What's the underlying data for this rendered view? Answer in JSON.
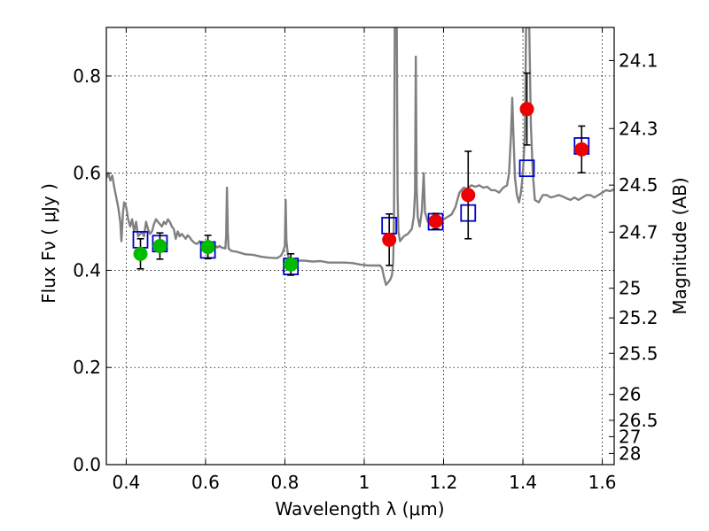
{
  "chart_data": {
    "type": "scatter",
    "xlabel": "Wavelength  λ (μm)",
    "ylabel": "Flux  Fν  ( μJy )",
    "y2label": "Magnitude (AB)",
    "xlim": [
      0.35,
      1.63
    ],
    "ylim": [
      0.0,
      0.9
    ],
    "grid": true,
    "x_ticks": [
      {
        "value": 0.4,
        "label": "0.4"
      },
      {
        "value": 0.6,
        "label": "0.6"
      },
      {
        "value": 0.8,
        "label": "0.8"
      },
      {
        "value": 1.0,
        "label": "1"
      },
      {
        "value": 1.2,
        "label": "1.2"
      },
      {
        "value": 1.4,
        "label": "1.4"
      },
      {
        "value": 1.6,
        "label": "1.6"
      }
    ],
    "y_ticks": [
      {
        "value": 0.0,
        "label": "0.0"
      },
      {
        "value": 0.2,
        "label": "0.2"
      },
      {
        "value": 0.4,
        "label": "0.4"
      },
      {
        "value": 0.6,
        "label": "0.6"
      },
      {
        "value": 0.8,
        "label": "0.8"
      }
    ],
    "y2_ticks": [
      {
        "value": 24.1,
        "label": "24.1"
      },
      {
        "value": 24.3,
        "label": "24.3"
      },
      {
        "value": 24.5,
        "label": "24.5"
      },
      {
        "value": 24.7,
        "label": "24.7"
      },
      {
        "value": 25.0,
        "label": "25"
      },
      {
        "value": 25.2,
        "label": "25.2"
      },
      {
        "value": 25.5,
        "label": "25.5"
      },
      {
        "value": 26.0,
        "label": "26"
      },
      {
        "value": 26.5,
        "label": "26.5"
      },
      {
        "value": 27.0,
        "label": "27"
      },
      {
        "value": 28.0,
        "label": "28"
      }
    ],
    "colors": {
      "model": "#808080",
      "model_photometry": "#0000cc",
      "optical_points": "#00bb00",
      "nir_points": "#ee0000",
      "errorbar": "#000000"
    },
    "model_spectrum": [
      [
        0.35,
        0.59
      ],
      [
        0.355,
        0.6
      ],
      [
        0.36,
        0.585
      ],
      [
        0.365,
        0.595
      ],
      [
        0.37,
        0.57
      ],
      [
        0.375,
        0.55
      ],
      [
        0.38,
        0.53
      ],
      [
        0.385,
        0.5
      ],
      [
        0.388,
        0.46
      ],
      [
        0.392,
        0.52
      ],
      [
        0.395,
        0.54
      ],
      [
        0.4,
        0.53
      ],
      [
        0.405,
        0.505
      ],
      [
        0.41,
        0.49
      ],
      [
        0.415,
        0.505
      ],
      [
        0.42,
        0.48
      ],
      [
        0.425,
        0.5
      ],
      [
        0.43,
        0.47
      ],
      [
        0.435,
        0.475
      ],
      [
        0.44,
        0.478
      ],
      [
        0.445,
        0.47
      ],
      [
        0.45,
        0.5
      ],
      [
        0.455,
        0.485
      ],
      [
        0.46,
        0.475
      ],
      [
        0.465,
        0.48
      ],
      [
        0.47,
        0.495
      ],
      [
        0.475,
        0.505
      ],
      [
        0.48,
        0.5
      ],
      [
        0.485,
        0.495
      ],
      [
        0.49,
        0.49
      ],
      [
        0.495,
        0.5
      ],
      [
        0.5,
        0.495
      ],
      [
        0.505,
        0.505
      ],
      [
        0.51,
        0.5
      ],
      [
        0.515,
        0.49
      ],
      [
        0.52,
        0.485
      ],
      [
        0.525,
        0.465
      ],
      [
        0.53,
        0.48
      ],
      [
        0.535,
        0.47
      ],
      [
        0.54,
        0.475
      ],
      [
        0.545,
        0.47
      ],
      [
        0.55,
        0.465
      ],
      [
        0.555,
        0.472
      ],
      [
        0.56,
        0.468
      ],
      [
        0.565,
        0.462
      ],
      [
        0.57,
        0.458
      ],
      [
        0.575,
        0.455
      ],
      [
        0.58,
        0.455
      ],
      [
        0.585,
        0.46
      ],
      [
        0.59,
        0.455
      ],
      [
        0.595,
        0.458
      ],
      [
        0.6,
        0.455
      ],
      [
        0.605,
        0.452
      ],
      [
        0.61,
        0.455
      ],
      [
        0.615,
        0.452
      ],
      [
        0.62,
        0.448
      ],
      [
        0.625,
        0.45
      ],
      [
        0.63,
        0.447
      ],
      [
        0.635,
        0.45
      ],
      [
        0.64,
        0.447
      ],
      [
        0.645,
        0.446
      ],
      [
        0.65,
        0.445
      ],
      [
        0.652,
        0.47
      ],
      [
        0.654,
        0.57
      ],
      [
        0.656,
        0.48
      ],
      [
        0.658,
        0.445
      ],
      [
        0.665,
        0.44
      ],
      [
        0.68,
        0.438
      ],
      [
        0.7,
        0.433
      ],
      [
        0.72,
        0.432
      ],
      [
        0.74,
        0.428
      ],
      [
        0.76,
        0.426
      ],
      [
        0.78,
        0.425
      ],
      [
        0.79,
        0.43
      ],
      [
        0.795,
        0.438
      ],
      [
        0.8,
        0.45
      ],
      [
        0.802,
        0.545
      ],
      [
        0.804,
        0.46
      ],
      [
        0.808,
        0.43
      ],
      [
        0.815,
        0.42
      ],
      [
        0.83,
        0.42
      ],
      [
        0.85,
        0.42
      ],
      [
        0.87,
        0.418
      ],
      [
        0.89,
        0.419
      ],
      [
        0.91,
        0.416
      ],
      [
        0.93,
        0.416
      ],
      [
        0.95,
        0.416
      ],
      [
        0.97,
        0.415
      ],
      [
        0.99,
        0.412
      ],
      [
        1.01,
        0.41
      ],
      [
        1.03,
        0.41
      ],
      [
        1.04,
        0.41
      ],
      [
        1.045,
        0.405
      ],
      [
        1.05,
        0.385
      ],
      [
        1.055,
        0.37
      ],
      [
        1.06,
        0.375
      ],
      [
        1.065,
        0.38
      ],
      [
        1.07,
        0.39
      ],
      [
        1.073,
        0.42
      ],
      [
        1.075,
        0.52
      ],
      [
        1.077,
        0.9
      ],
      [
        1.082,
        0.9
      ],
      [
        1.084,
        0.56
      ],
      [
        1.086,
        0.48
      ],
      [
        1.09,
        0.46
      ],
      [
        1.1,
        0.47
      ],
      [
        1.11,
        0.475
      ],
      [
        1.12,
        0.485
      ],
      [
        1.125,
        0.51
      ],
      [
        1.128,
        0.56
      ],
      [
        1.13,
        0.84
      ],
      [
        1.132,
        0.57
      ],
      [
        1.135,
        0.51
      ],
      [
        1.14,
        0.49
      ],
      [
        1.145,
        0.52
      ],
      [
        1.15,
        0.6
      ],
      [
        1.153,
        0.52
      ],
      [
        1.16,
        0.5
      ],
      [
        1.17,
        0.505
      ],
      [
        1.18,
        0.502
      ],
      [
        1.19,
        0.505
      ],
      [
        1.2,
        0.505
      ],
      [
        1.21,
        0.51
      ],
      [
        1.22,
        0.515
      ],
      [
        1.23,
        0.53
      ],
      [
        1.24,
        0.56
      ],
      [
        1.25,
        0.57
      ],
      [
        1.26,
        0.568
      ],
      [
        1.27,
        0.575
      ],
      [
        1.28,
        0.572
      ],
      [
        1.29,
        0.575
      ],
      [
        1.3,
        0.57
      ],
      [
        1.31,
        0.572
      ],
      [
        1.32,
        0.565
      ],
      [
        1.33,
        0.565
      ],
      [
        1.34,
        0.56
      ],
      [
        1.35,
        0.57
      ],
      [
        1.36,
        0.575
      ],
      [
        1.365,
        0.6
      ],
      [
        1.37,
        0.68
      ],
      [
        1.373,
        0.755
      ],
      [
        1.376,
        0.68
      ],
      [
        1.38,
        0.59
      ],
      [
        1.385,
        0.555
      ],
      [
        1.39,
        0.54
      ],
      [
        1.395,
        0.56
      ],
      [
        1.4,
        0.6
      ],
      [
        1.405,
        0.68
      ],
      [
        1.408,
        0.9
      ],
      [
        1.416,
        0.9
      ],
      [
        1.42,
        0.7
      ],
      [
        1.425,
        0.6
      ],
      [
        1.43,
        0.545
      ],
      [
        1.44,
        0.54
      ],
      [
        1.45,
        0.555
      ],
      [
        1.46,
        0.555
      ],
      [
        1.47,
        0.55
      ],
      [
        1.48,
        0.552
      ],
      [
        1.49,
        0.555
      ],
      [
        1.5,
        0.552
      ],
      [
        1.51,
        0.548
      ],
      [
        1.52,
        0.545
      ],
      [
        1.53,
        0.55
      ],
      [
        1.54,
        0.545
      ],
      [
        1.55,
        0.55
      ],
      [
        1.56,
        0.555
      ],
      [
        1.57,
        0.555
      ],
      [
        1.58,
        0.55
      ],
      [
        1.59,
        0.555
      ],
      [
        1.6,
        0.56
      ],
      [
        1.61,
        0.565
      ],
      [
        1.62,
        0.563
      ],
      [
        1.63,
        0.567
      ]
    ],
    "model_photometry": [
      {
        "x": 0.436,
        "y": 0.463
      },
      {
        "x": 0.485,
        "y": 0.455
      },
      {
        "x": 0.606,
        "y": 0.442
      },
      {
        "x": 0.815,
        "y": 0.408
      },
      {
        "x": 1.063,
        "y": 0.492
      },
      {
        "x": 1.18,
        "y": 0.5
      },
      {
        "x": 1.262,
        "y": 0.518
      },
      {
        "x": 1.41,
        "y": 0.61
      },
      {
        "x": 1.548,
        "y": 0.656
      }
    ],
    "optical_points": [
      {
        "x": 0.436,
        "y": 0.434,
        "err_low": 0.031,
        "err_high": 0.031
      },
      {
        "x": 0.485,
        "y": 0.45,
        "err_low": 0.027,
        "err_high": 0.027
      },
      {
        "x": 0.606,
        "y": 0.448,
        "err_low": 0.024,
        "err_high": 0.024
      },
      {
        "x": 0.815,
        "y": 0.412,
        "err_low": 0.022,
        "err_high": 0.022
      }
    ],
    "nir_points": [
      {
        "x": 1.063,
        "y": 0.463,
        "err_low": 0.053,
        "err_high": 0.053
      },
      {
        "x": 1.18,
        "y": 0.501,
        "err_low": 0.016,
        "err_high": 0.016
      },
      {
        "x": 1.262,
        "y": 0.555,
        "err_low": 0.09,
        "err_high": 0.09
      },
      {
        "x": 1.41,
        "y": 0.732,
        "err_low": 0.074,
        "err_high": 0.074
      },
      {
        "x": 1.548,
        "y": 0.649,
        "err_low": 0.048,
        "err_high": 0.048
      }
    ]
  }
}
